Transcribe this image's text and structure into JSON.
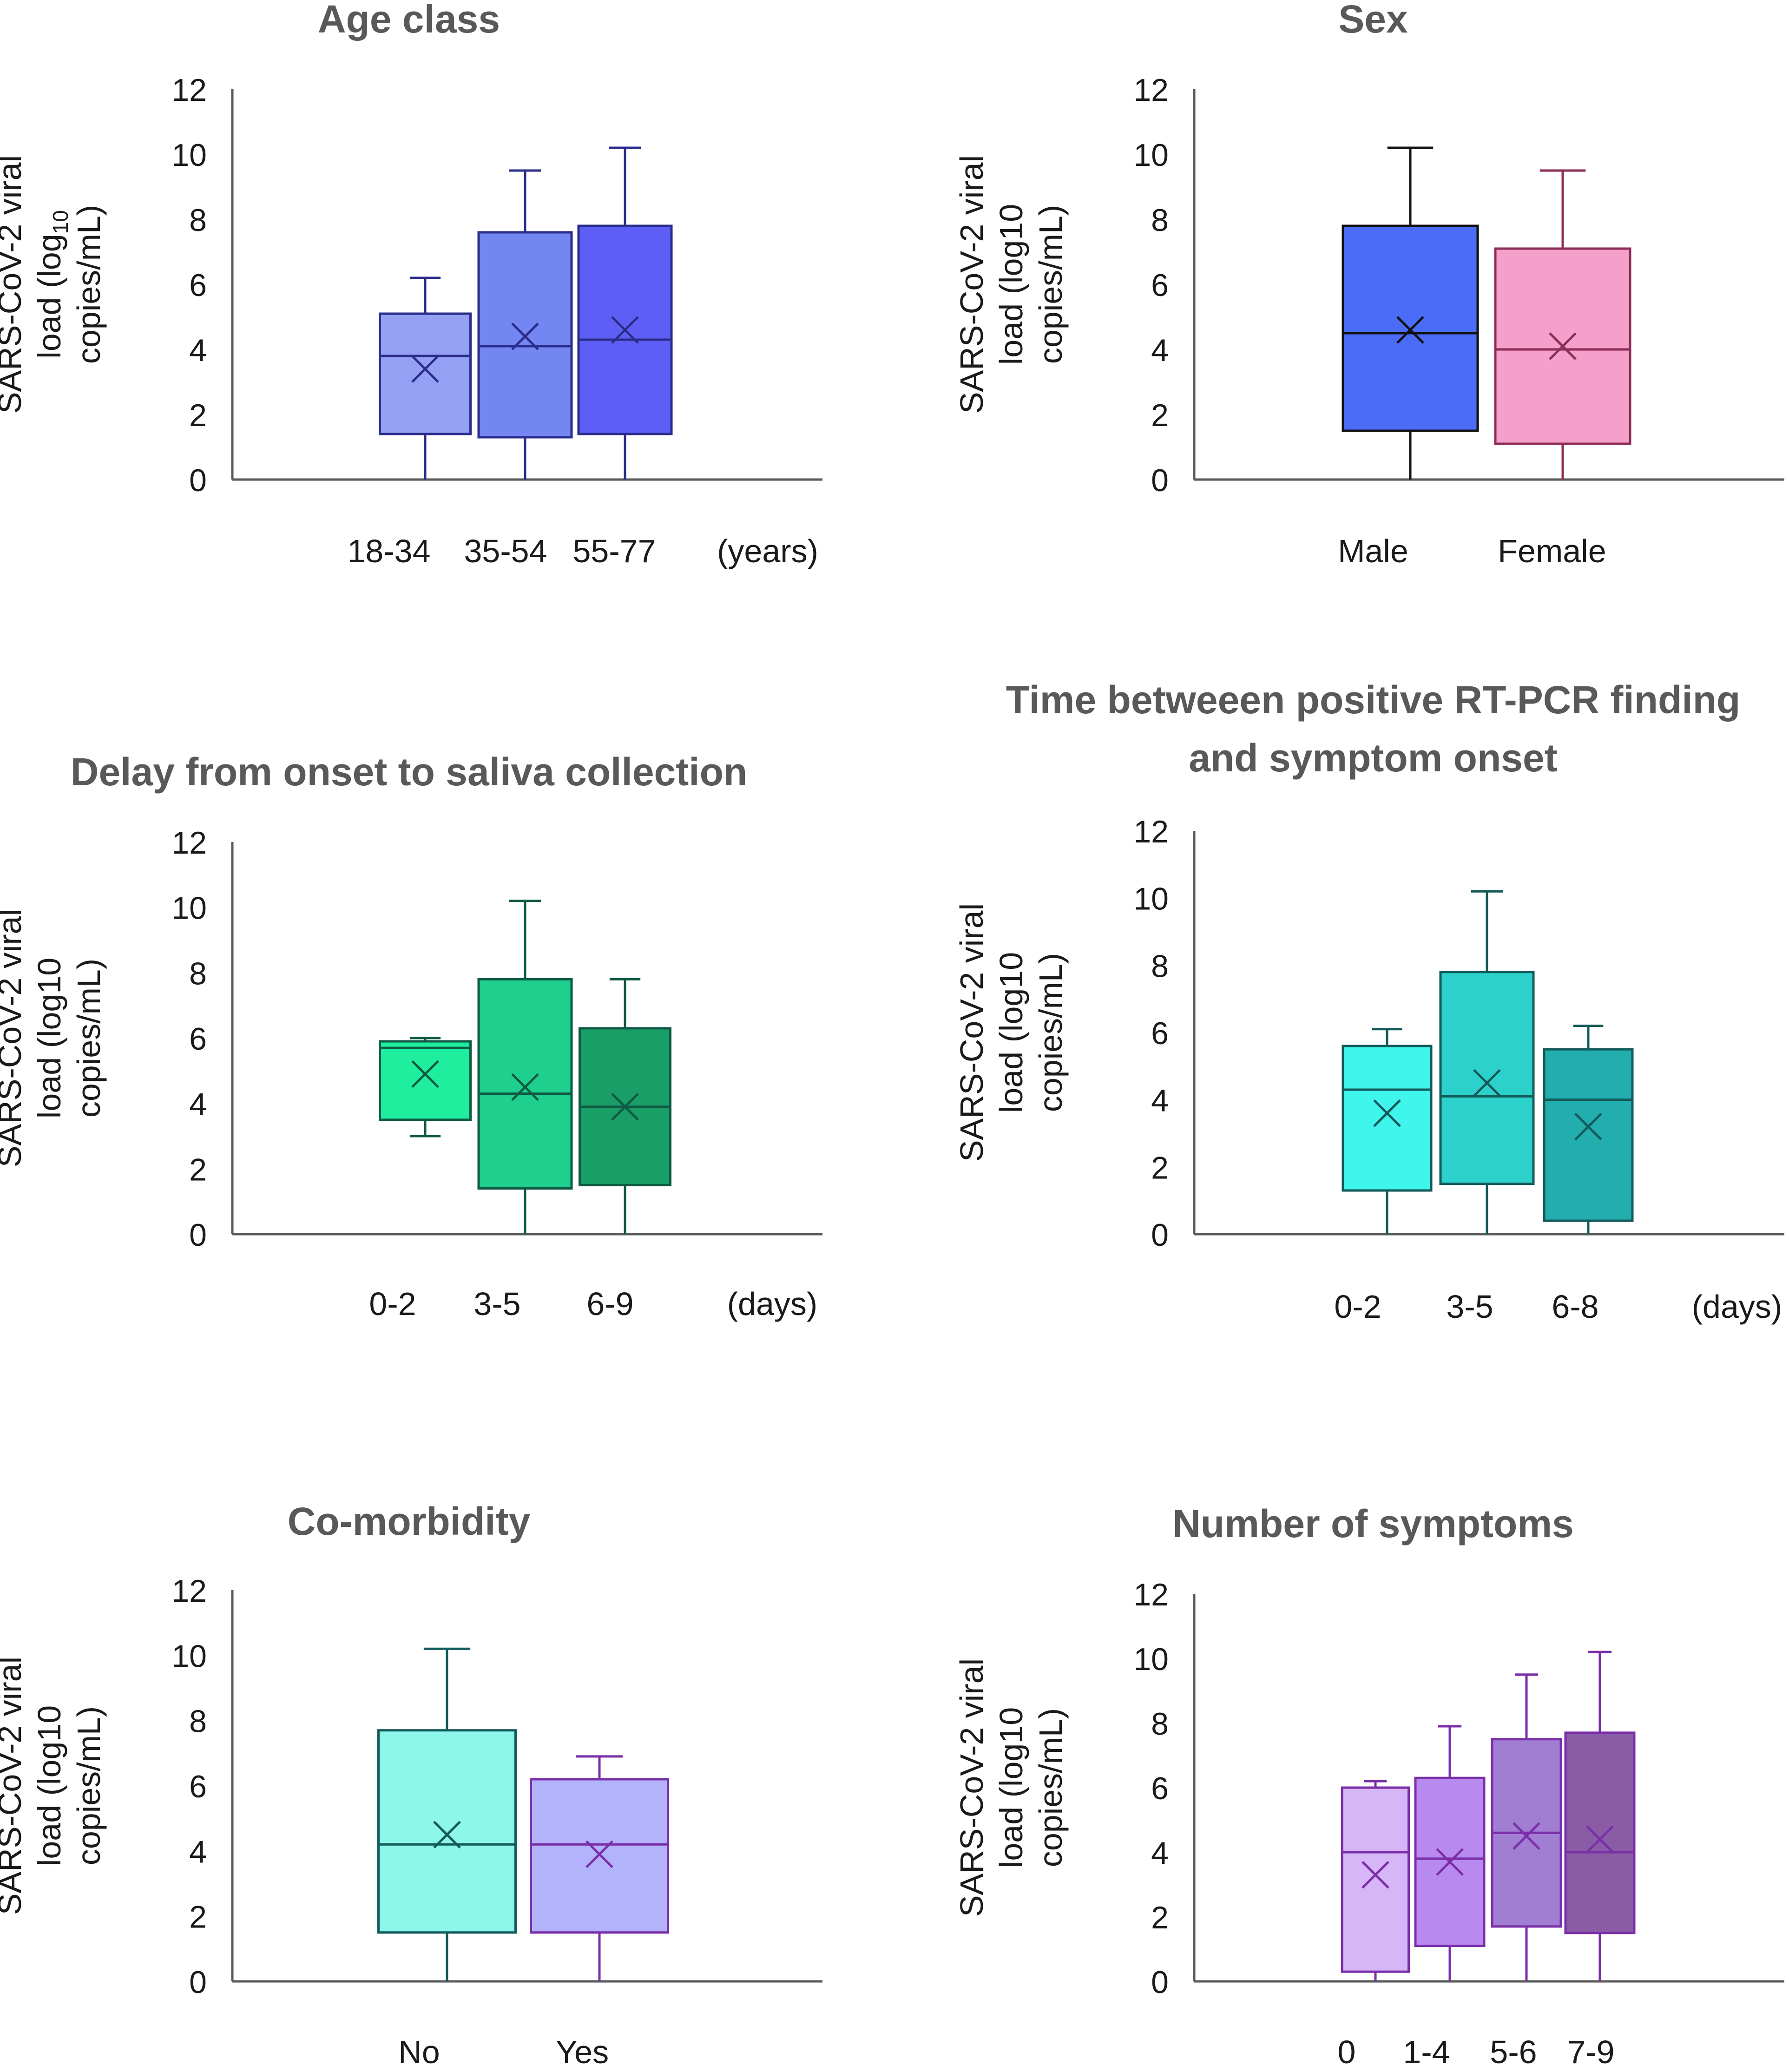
{
  "figure": {
    "description_label": "Box plots of SARS-CoV-2 viral load by patient characteristics"
  },
  "chart_data": [
    {
      "type": "box",
      "title": [
        "Age class"
      ],
      "ylabel": [
        "SARS-CoV-2 viral",
        "load (log10",
        "copies/mL)"
      ],
      "ylabel_subscript": true,
      "ylim": [
        0,
        12
      ],
      "yticks": [
        "0",
        "2",
        "4",
        "6",
        "8",
        "10",
        "12"
      ],
      "unit": "(years)",
      "categories": [
        "18-34",
        "35-54",
        "55-77"
      ],
      "boxes": [
        {
          "min": 0,
          "q1": 1.4,
          "median": 3.8,
          "q3": 5.1,
          "max": 6.2,
          "mean": 3.4,
          "fill": "#93a0f3",
          "stroke": "#2b2d8a"
        },
        {
          "min": 0,
          "q1": 1.3,
          "median": 4.1,
          "q3": 7.6,
          "max": 9.5,
          "mean": 4.4,
          "fill": "#7486f2",
          "stroke": "#2b2d8a"
        },
        {
          "min": 0,
          "q1": 1.4,
          "median": 4.3,
          "q3": 7.8,
          "max": 10.2,
          "mean": 4.6,
          "fill": "#5c5ef5",
          "stroke": "#2b2d8a"
        }
      ]
    },
    {
      "type": "box",
      "title": [
        "Sex"
      ],
      "ylabel": [
        "SARS-CoV-2 viral",
        "load (log10",
        "copies/mL)"
      ],
      "ylabel_subscript": false,
      "ylim": [
        0,
        12
      ],
      "yticks": [
        "0",
        "2",
        "4",
        "6",
        "8",
        "10",
        "12"
      ],
      "unit": "",
      "categories": [
        "Male",
        "Female"
      ],
      "boxes": [
        {
          "min": 0,
          "q1": 1.5,
          "median": 4.5,
          "q3": 7.8,
          "max": 10.2,
          "mean": 4.6,
          "fill": "#4a6cf7",
          "stroke": "#111111"
        },
        {
          "min": 0,
          "q1": 1.1,
          "median": 4.0,
          "q3": 7.1,
          "max": 9.5,
          "mean": 4.1,
          "fill": "#f59fcb",
          "stroke": "#8b2d55"
        }
      ]
    },
    {
      "type": "box",
      "title": [
        "Delay from onset to saliva collection"
      ],
      "ylabel": [
        "SARS-CoV-2 viral",
        "load (log10",
        "copies/mL)"
      ],
      "ylabel_subscript": false,
      "ylim": [
        0,
        12
      ],
      "yticks": [
        "0",
        "2",
        "4",
        "6",
        "8",
        "10",
        "12"
      ],
      "unit": "(days)",
      "categories": [
        "0-2",
        "3-5",
        "6-9"
      ],
      "boxes": [
        {
          "min": 3.0,
          "q1": 3.5,
          "median": 5.7,
          "q3": 5.9,
          "max": 6.0,
          "mean": 4.9,
          "fill": "#1fee9e",
          "stroke": "#0f5a44"
        },
        {
          "min": 0,
          "q1": 1.4,
          "median": 4.3,
          "q3": 7.8,
          "max": 10.2,
          "mean": 4.5,
          "fill": "#1ecf8d",
          "stroke": "#0f5a44"
        },
        {
          "min": 0,
          "q1": 1.5,
          "median": 3.9,
          "q3": 6.3,
          "max": 7.8,
          "mean": 3.9,
          "fill": "#199e68",
          "stroke": "#0f5a44"
        }
      ]
    },
    {
      "type": "box",
      "title": [
        "Time betweeen positive RT-PCR finding",
        "and symptom onset"
      ],
      "ylabel": [
        "SARS-CoV-2 viral",
        "load (log10",
        "copies/mL)"
      ],
      "ylabel_subscript": false,
      "ylim": [
        0,
        12
      ],
      "yticks": [
        "0",
        "2",
        "4",
        "6",
        "8",
        "10",
        "12"
      ],
      "unit": "(days)",
      "categories": [
        "0-2",
        "3-5",
        "6-8"
      ],
      "boxes": [
        {
          "min": 0,
          "q1": 1.3,
          "median": 4.3,
          "q3": 5.6,
          "max": 6.1,
          "mean": 3.6,
          "fill": "#3ff5ec",
          "stroke": "#135a5a"
        },
        {
          "min": 0,
          "q1": 1.5,
          "median": 4.1,
          "q3": 7.8,
          "max": 10.2,
          "mean": 4.5,
          "fill": "#2dd1cb",
          "stroke": "#135a5a"
        },
        {
          "min": 0,
          "q1": 0.4,
          "median": 4.0,
          "q3": 5.5,
          "max": 6.2,
          "mean": 3.2,
          "fill": "#22aeae",
          "stroke": "#135a5a"
        }
      ]
    },
    {
      "type": "box",
      "title": [
        "Co-morbidity"
      ],
      "ylabel": [
        "SARS-CoV-2 viral",
        "load (log10",
        "copies/mL)"
      ],
      "ylabel_subscript": false,
      "ylim": [
        0,
        12
      ],
      "yticks": [
        "0",
        "2",
        "4",
        "6",
        "8",
        "10",
        "12"
      ],
      "unit": "",
      "categories": [
        "No",
        "Yes"
      ],
      "boxes": [
        {
          "min": 0,
          "q1": 1.5,
          "median": 4.2,
          "q3": 7.7,
          "max": 10.2,
          "mean": 4.5,
          "fill": "#8ef7eb",
          "stroke": "#135a5a"
        },
        {
          "min": 0,
          "q1": 1.5,
          "median": 4.2,
          "q3": 6.2,
          "max": 6.9,
          "mean": 3.9,
          "fill": "#b3b3fb",
          "stroke": "#7a2ea8"
        }
      ]
    },
    {
      "type": "box",
      "title": [
        "Number of symptoms"
      ],
      "ylabel": [
        "SARS-CoV-2 viral",
        "load (log10",
        "copies/mL)"
      ],
      "ylabel_subscript": false,
      "ylim": [
        0,
        12
      ],
      "yticks": [
        "0",
        "2",
        "4",
        "6",
        "8",
        "10",
        "12"
      ],
      "unit": "",
      "categories": [
        "0",
        "1-4",
        "5-6",
        "7-9"
      ],
      "boxes": [
        {
          "min": 0,
          "q1": 0.3,
          "median": 4.0,
          "q3": 6.0,
          "max": 6.2,
          "mean": 3.3,
          "fill": "#d6b6f7",
          "stroke": "#7a2ea8"
        },
        {
          "min": 0,
          "q1": 1.1,
          "median": 3.8,
          "q3": 6.3,
          "max": 7.9,
          "mean": 3.7,
          "fill": "#b88af0",
          "stroke": "#7a2ea8"
        },
        {
          "min": 0,
          "q1": 1.7,
          "median": 4.6,
          "q3": 7.5,
          "max": 9.5,
          "mean": 4.5,
          "fill": "#a27ed3",
          "stroke": "#7a2ea8"
        },
        {
          "min": 0,
          "q1": 1.5,
          "median": 4.0,
          "q3": 7.7,
          "max": 10.2,
          "mean": 4.4,
          "fill": "#8b5ca6",
          "stroke": "#7a2ea8"
        }
      ]
    }
  ]
}
